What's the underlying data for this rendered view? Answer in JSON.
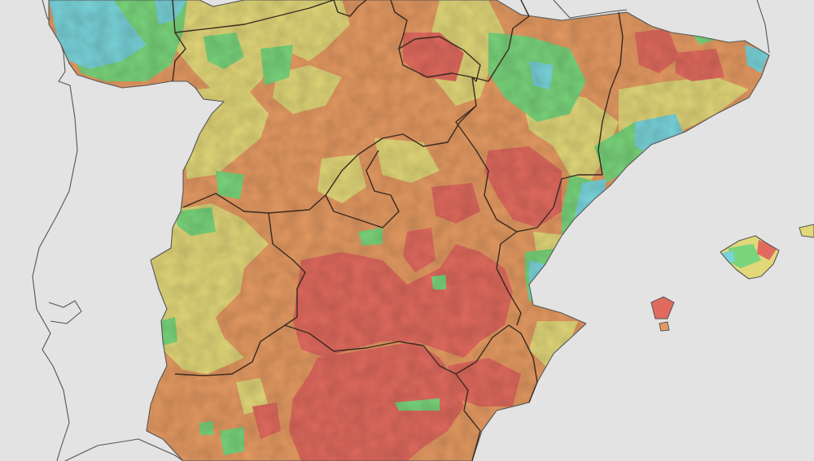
{
  "map": {
    "background": "#e3e3e3",
    "neighbor_land_fill": "#e3e3e3",
    "coast_stroke": "#555555",
    "border_stroke": "#3a2a20",
    "palette": {
      "very_high": "#e16a5e",
      "high": "#e59a62",
      "medium": "#e2d779",
      "low": "#79d47b",
      "very_low": "#79d3d9"
    },
    "regions": [
      "galicia",
      "asturias",
      "cantabria",
      "pais-vasco",
      "navarra",
      "la-rioja",
      "aragon",
      "cataluna",
      "castilla-y-leon",
      "madrid",
      "extremadura",
      "castilla-la-mancha",
      "comunidad-valenciana",
      "murcia",
      "andalucia",
      "islas-baleares"
    ]
  }
}
